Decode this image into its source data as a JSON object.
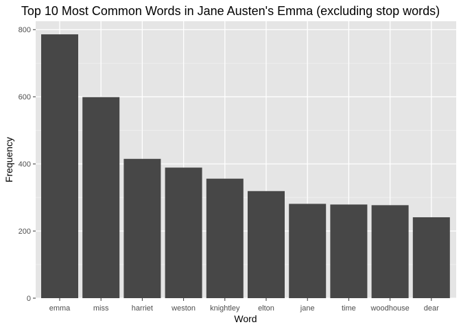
{
  "chart_data": {
    "type": "bar",
    "title": "Top 10 Most Common Words in Jane Austen's Emma (excluding stop words)",
    "xlabel": "Word",
    "ylabel": "Frequency",
    "categories": [
      "emma",
      "miss",
      "harriet",
      "weston",
      "knightley",
      "elton",
      "jane",
      "time",
      "woodhouse",
      "dear"
    ],
    "values": [
      786,
      599,
      415,
      389,
      356,
      319,
      281,
      279,
      277,
      241
    ],
    "ylim": [
      0,
      825
    ],
    "yticks": [
      0,
      200,
      400,
      600,
      800
    ],
    "grid": true,
    "legend": "none",
    "colors": {
      "bar": "#474747",
      "panel_background": "#e5e5e5",
      "grid_major": "#ffffff",
      "grid_minor": "#f2f2f2"
    }
  }
}
